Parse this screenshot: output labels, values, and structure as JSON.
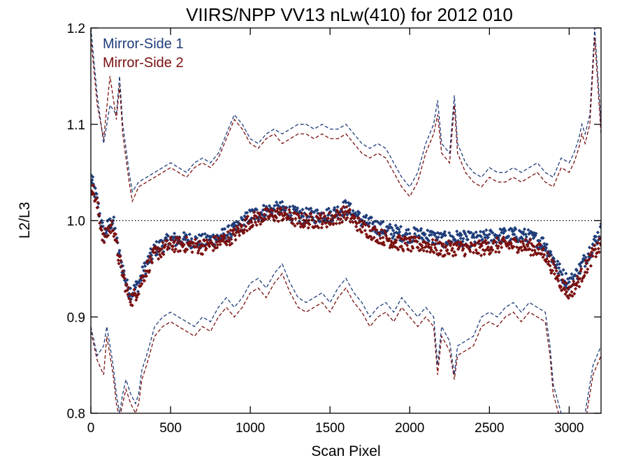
{
  "chart_data": {
    "type": "scatter",
    "title": "VIIRS/NPP VV13 nLw(410) for 2012 010",
    "xlabel": "Scan Pixel",
    "ylabel": "L2/L3",
    "xlim": [
      0,
      3200
    ],
    "ylim": [
      0.8,
      1.2
    ],
    "xticks": [
      0,
      500,
      1000,
      1500,
      2000,
      2500,
      3000
    ],
    "yticks": [
      0.8,
      0.9,
      1.0,
      1.1,
      1.2
    ],
    "xtick_labels": [
      "0",
      "500",
      "1000",
      "1500",
      "2000",
      "2500",
      "3000"
    ],
    "ytick_labels": [
      "0.8",
      "0.9",
      "1.0",
      "1.1",
      "1.2"
    ],
    "reference_line": 1.0,
    "legend_position": "top-left",
    "series": [
      {
        "name": "Mirror-Side 1",
        "color": "#1f3d7a",
        "mean": {
          "x": [
            0,
            40,
            80,
            110,
            140,
            170,
            200,
            230,
            260,
            300,
            350,
            400,
            450,
            500,
            600,
            700,
            800,
            900,
            1000,
            1100,
            1200,
            1300,
            1400,
            1500,
            1600,
            1700,
            1800,
            1900,
            2000,
            2100,
            2200,
            2300,
            2400,
            2500,
            2600,
            2700,
            2800,
            2850,
            2900,
            2950,
            3000,
            3050,
            3100,
            3150,
            3200
          ],
          "y": [
            1.045,
            1.02,
            0.985,
            0.995,
            1.0,
            0.97,
            0.95,
            0.93,
            0.925,
            0.935,
            0.955,
            0.97,
            0.975,
            0.98,
            0.98,
            0.978,
            0.982,
            0.99,
            1.005,
            1.01,
            1.012,
            1.005,
            1.005,
            1.006,
            1.014,
            1.0,
            0.993,
            0.988,
            0.985,
            0.985,
            0.98,
            0.982,
            0.98,
            0.983,
            0.985,
            0.985,
            0.98,
            0.975,
            0.96,
            0.945,
            0.935,
            0.945,
            0.96,
            0.975,
            0.99
          ]
        },
        "upper": {
          "x": [
            0,
            40,
            80,
            120,
            160,
            180,
            200,
            240,
            260,
            300,
            350,
            400,
            450,
            500,
            550,
            600,
            650,
            700,
            750,
            800,
            850,
            900,
            950,
            1000,
            1050,
            1100,
            1150,
            1200,
            1250,
            1300,
            1350,
            1400,
            1450,
            1500,
            1550,
            1600,
            1650,
            1700,
            1750,
            1800,
            1850,
            1900,
            1950,
            2000,
            2050,
            2100,
            2150,
            2175,
            2200,
            2250,
            2280,
            2300,
            2350,
            2400,
            2450,
            2500,
            2550,
            2600,
            2650,
            2700,
            2750,
            2800,
            2850,
            2900,
            2950,
            3000,
            3030,
            3060,
            3080,
            3100,
            3130,
            3160,
            3200
          ],
          "y": [
            1.2,
            1.13,
            1.08,
            1.12,
            1.11,
            1.15,
            1.1,
            1.05,
            1.03,
            1.04,
            1.045,
            1.05,
            1.055,
            1.06,
            1.055,
            1.05,
            1.06,
            1.065,
            1.06,
            1.07,
            1.09,
            1.11,
            1.1,
            1.085,
            1.08,
            1.09,
            1.095,
            1.09,
            1.095,
            1.1,
            1.1,
            1.095,
            1.1,
            1.095,
            1.095,
            1.1,
            1.09,
            1.08,
            1.075,
            1.08,
            1.075,
            1.06,
            1.045,
            1.035,
            1.05,
            1.08,
            1.1,
            1.125,
            1.08,
            1.07,
            1.13,
            1.08,
            1.06,
            1.05,
            1.045,
            1.055,
            1.05,
            1.05,
            1.055,
            1.05,
            1.055,
            1.06,
            1.05,
            1.045,
            1.065,
            1.06,
            1.07,
            1.085,
            1.1,
            1.09,
            1.11,
            1.2,
            1.1
          ]
        },
        "lower": {
          "x": [
            0,
            40,
            80,
            100,
            120,
            140,
            160,
            180,
            200,
            220,
            250,
            280,
            300,
            320,
            350,
            400,
            450,
            500,
            550,
            600,
            650,
            700,
            750,
            800,
            850,
            900,
            950,
            1000,
            1050,
            1100,
            1150,
            1200,
            1250,
            1300,
            1350,
            1400,
            1450,
            1500,
            1550,
            1600,
            1650,
            1700,
            1750,
            1800,
            1850,
            1900,
            1950,
            2000,
            2050,
            2100,
            2150,
            2175,
            2200,
            2250,
            2280,
            2300,
            2350,
            2400,
            2450,
            2500,
            2550,
            2600,
            2650,
            2700,
            2750,
            2800,
            2850,
            2880,
            2900,
            2950,
            3000,
            3030,
            3060,
            3100,
            3150,
            3200
          ],
          "y": [
            0.89,
            0.86,
            0.87,
            0.89,
            0.87,
            0.85,
            0.82,
            0.8,
            0.82,
            0.835,
            0.82,
            0.81,
            0.82,
            0.845,
            0.86,
            0.89,
            0.9,
            0.905,
            0.9,
            0.895,
            0.89,
            0.9,
            0.895,
            0.91,
            0.92,
            0.91,
            0.92,
            0.935,
            0.94,
            0.93,
            0.945,
            0.955,
            0.935,
            0.92,
            0.915,
            0.92,
            0.925,
            0.915,
            0.93,
            0.94,
            0.925,
            0.915,
            0.9,
            0.91,
            0.915,
            0.905,
            0.92,
            0.91,
            0.9,
            0.91,
            0.9,
            0.85,
            0.89,
            0.875,
            0.84,
            0.87,
            0.875,
            0.88,
            0.9,
            0.905,
            0.9,
            0.91,
            0.915,
            0.905,
            0.915,
            0.91,
            0.905,
            0.87,
            0.83,
            0.8,
            0.79,
            0.8,
            0.79,
            0.8,
            0.85,
            0.87
          ]
        }
      },
      {
        "name": "Mirror-Side 2",
        "color": "#7a1010",
        "mean": {
          "x": [
            0,
            40,
            80,
            110,
            140,
            170,
            200,
            230,
            260,
            300,
            350,
            400,
            450,
            500,
            600,
            700,
            800,
            900,
            1000,
            1100,
            1200,
            1300,
            1400,
            1500,
            1600,
            1700,
            1800,
            1900,
            2000,
            2100,
            2200,
            2300,
            2400,
            2500,
            2600,
            2700,
            2800,
            2850,
            2900,
            2950,
            3000,
            3050,
            3100,
            3150,
            3200
          ],
          "y": [
            1.04,
            1.015,
            0.98,
            0.99,
            0.995,
            0.965,
            0.945,
            0.925,
            0.918,
            0.93,
            0.95,
            0.965,
            0.97,
            0.975,
            0.975,
            0.973,
            0.977,
            0.985,
            1.0,
            1.005,
            1.007,
            1.0,
            1.0,
            1.001,
            1.008,
            0.993,
            0.985,
            0.978,
            0.975,
            0.975,
            0.97,
            0.972,
            0.97,
            0.973,
            0.975,
            0.975,
            0.97,
            0.965,
            0.95,
            0.935,
            0.925,
            0.935,
            0.95,
            0.965,
            0.975
          ]
        },
        "upper": {
          "x": [
            0,
            40,
            80,
            120,
            160,
            180,
            200,
            240,
            260,
            300,
            350,
            400,
            450,
            500,
            550,
            600,
            650,
            700,
            750,
            800,
            850,
            900,
            950,
            1000,
            1050,
            1100,
            1150,
            1200,
            1250,
            1300,
            1350,
            1400,
            1450,
            1500,
            1550,
            1600,
            1650,
            1700,
            1750,
            1800,
            1850,
            1900,
            1950,
            2000,
            2050,
            2100,
            2150,
            2175,
            2200,
            2250,
            2280,
            2300,
            2350,
            2400,
            2450,
            2500,
            2550,
            2600,
            2650,
            2700,
            2750,
            2800,
            2850,
            2900,
            2950,
            3000,
            3030,
            3060,
            3080,
            3100,
            3130,
            3160,
            3200
          ],
          "y": [
            1.19,
            1.12,
            1.085,
            1.15,
            1.105,
            1.14,
            1.09,
            1.04,
            1.02,
            1.035,
            1.04,
            1.045,
            1.05,
            1.055,
            1.05,
            1.045,
            1.055,
            1.06,
            1.055,
            1.065,
            1.085,
            1.105,
            1.095,
            1.08,
            1.075,
            1.085,
            1.09,
            1.08,
            1.085,
            1.09,
            1.09,
            1.085,
            1.09,
            1.085,
            1.085,
            1.09,
            1.08,
            1.07,
            1.065,
            1.07,
            1.065,
            1.05,
            1.035,
            1.025,
            1.04,
            1.07,
            1.09,
            1.11,
            1.07,
            1.06,
            1.12,
            1.07,
            1.05,
            1.04,
            1.035,
            1.045,
            1.04,
            1.04,
            1.045,
            1.04,
            1.045,
            1.05,
            1.04,
            1.035,
            1.055,
            1.05,
            1.06,
            1.075,
            1.09,
            1.08,
            1.1,
            1.19,
            1.09
          ]
        },
        "lower": {
          "x": [
            0,
            40,
            80,
            100,
            120,
            140,
            160,
            180,
            200,
            220,
            250,
            280,
            300,
            320,
            350,
            400,
            450,
            500,
            550,
            600,
            650,
            700,
            750,
            800,
            850,
            900,
            950,
            1000,
            1050,
            1100,
            1150,
            1200,
            1250,
            1300,
            1350,
            1400,
            1450,
            1500,
            1550,
            1600,
            1650,
            1700,
            1750,
            1800,
            1850,
            1900,
            1950,
            2000,
            2050,
            2100,
            2150,
            2175,
            2200,
            2250,
            2280,
            2300,
            2350,
            2400,
            2450,
            2500,
            2550,
            2600,
            2650,
            2700,
            2750,
            2800,
            2850,
            2880,
            2900,
            2950,
            3000,
            3030,
            3060,
            3100,
            3150,
            3200
          ],
          "y": [
            0.885,
            0.855,
            0.84,
            0.88,
            0.86,
            0.84,
            0.81,
            0.795,
            0.81,
            0.825,
            0.81,
            0.8,
            0.81,
            0.835,
            0.85,
            0.88,
            0.89,
            0.895,
            0.89,
            0.885,
            0.88,
            0.89,
            0.885,
            0.9,
            0.91,
            0.9,
            0.91,
            0.925,
            0.93,
            0.92,
            0.935,
            0.945,
            0.925,
            0.91,
            0.905,
            0.91,
            0.915,
            0.905,
            0.92,
            0.93,
            0.915,
            0.905,
            0.89,
            0.9,
            0.905,
            0.895,
            0.91,
            0.9,
            0.89,
            0.9,
            0.89,
            0.84,
            0.88,
            0.865,
            0.835,
            0.86,
            0.865,
            0.87,
            0.89,
            0.895,
            0.89,
            0.9,
            0.905,
            0.895,
            0.905,
            0.9,
            0.895,
            0.86,
            0.82,
            0.79,
            0.78,
            0.79,
            0.78,
            0.79,
            0.84,
            0.86
          ]
        }
      }
    ]
  }
}
